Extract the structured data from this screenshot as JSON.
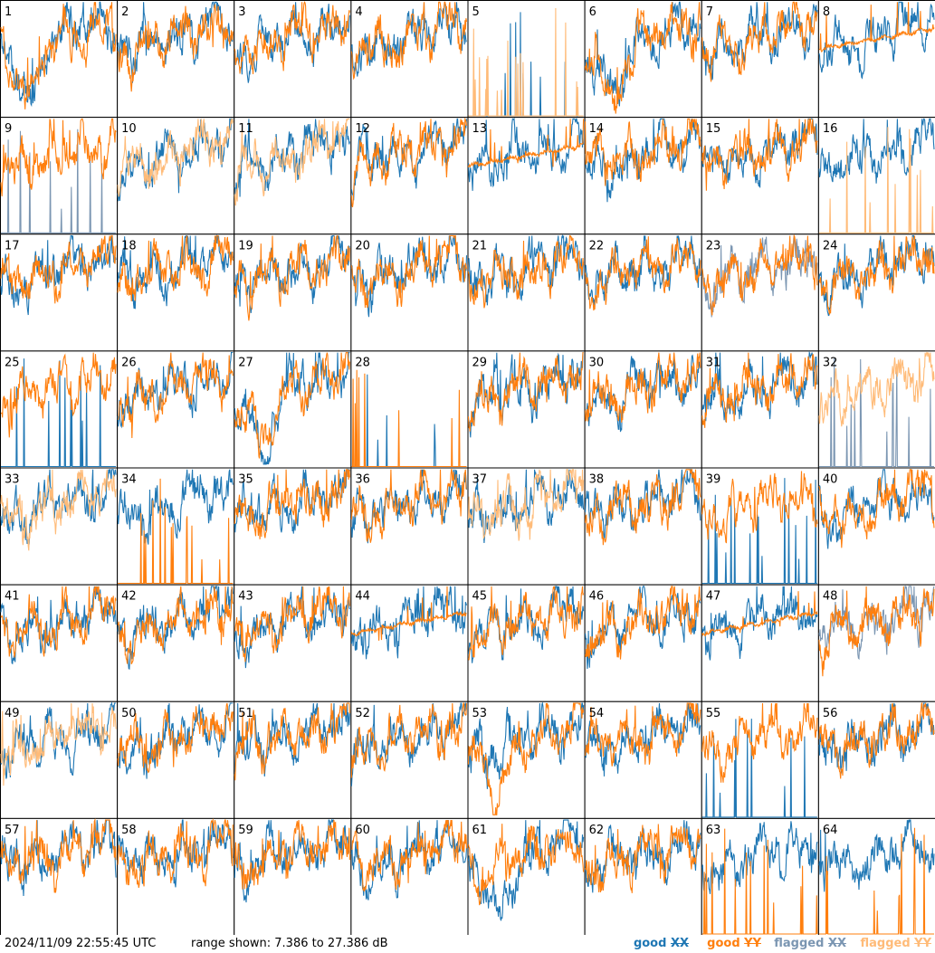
{
  "chart_data": {
    "type": "line",
    "description_units": "dB",
    "ylim": [
      7.386,
      27.386
    ],
    "panel_labels": [
      "1",
      "2",
      "3",
      "4",
      "5",
      "6",
      "7",
      "8",
      "9",
      "10",
      "11",
      "12",
      "13",
      "14",
      "15",
      "16",
      "17",
      "18",
      "19",
      "20",
      "21",
      "22",
      "23",
      "24",
      "25",
      "26",
      "27",
      "28",
      "29",
      "30",
      "31",
      "32",
      "33",
      "34",
      "35",
      "36",
      "37",
      "38",
      "39",
      "40",
      "41",
      "42",
      "43",
      "44",
      "45",
      "46",
      "47",
      "48",
      "49",
      "50",
      "51",
      "52",
      "53",
      "54",
      "55",
      "56",
      "57",
      "58",
      "59",
      "60",
      "61",
      "62",
      "63",
      "64"
    ],
    "series_names": [
      "good XX",
      "good YY",
      "flagged XX",
      "flagged YY"
    ],
    "colors": {
      "good_xx": "#1f77b4",
      "good_yy": "#ff7f0e",
      "flagged_xx": "#7b96b2",
      "flagged_yy": "#ffbb78"
    },
    "panel_status": {
      "flagged_xx": [
        9,
        23,
        32,
        48
      ],
      "flagged_yy": [
        5,
        10,
        11,
        16,
        32,
        33,
        37,
        49
      ],
      "dropout_xx": [
        5,
        9,
        25,
        28,
        32,
        39,
        55
      ],
      "dropout_yy": [
        5,
        16,
        28,
        34,
        63,
        64
      ],
      "shape_variant": {
        "1": "dip",
        "6": "dip",
        "27": "dip",
        "44": "flat_yy",
        "47": "flat_yy",
        "53": "dip_yy",
        "61": "dip_xx",
        "13": "flat_yy",
        "8": "flat_yy"
      }
    }
  },
  "footer": {
    "timestamp": "2024/11/09 22:55:45 UTC",
    "range_text": "range shown: 7.386 to 27.386 dB"
  },
  "legend": {
    "good_label": "good",
    "flagged_label": "flagged",
    "xx": "XX",
    "yy": "YY"
  }
}
